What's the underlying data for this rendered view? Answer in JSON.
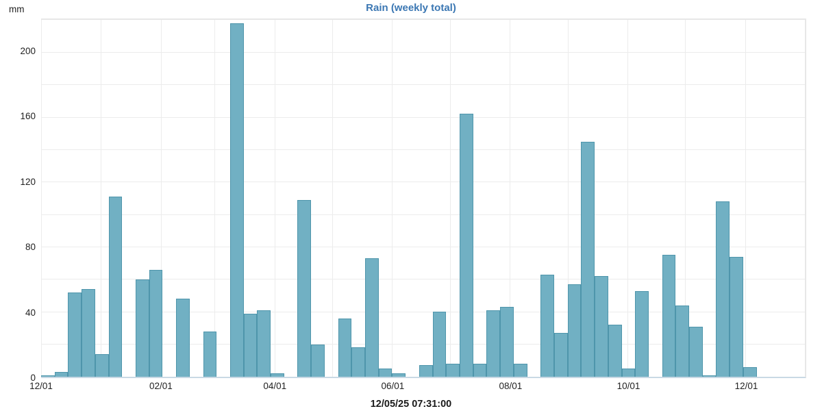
{
  "header": {
    "title": "Rain (weekly total)",
    "unit_label": "mm"
  },
  "footer": {
    "timestamp": "12/05/25 07:31:00"
  },
  "colors": {
    "bar_fill": "#71b0c3",
    "bar_border": "#4e95ab",
    "title_text": "#3b77b3",
    "grid_line": "#ececec",
    "frame_line": "#e7e7e7",
    "axis_baseline": "#c9d9e4",
    "tick_text": "#1f1f1f"
  },
  "chart_data": {
    "type": "bar",
    "title": "Rain (weekly total)",
    "ylabel": "mm",
    "xlabel": "",
    "ylim": [
      0,
      220
    ],
    "y_tick_labels": [
      0,
      40,
      80,
      120,
      160,
      200
    ],
    "y_grid_step": 20,
    "grid": true,
    "legend_position": "none",
    "x_axis_note": "weekly bars over 13 months, ticks every 2 months",
    "x_tick_labels": [
      "12/01",
      "02/01",
      "04/01",
      "06/01",
      "08/01",
      "10/01",
      "12/01"
    ],
    "x_tick_days": [
      0,
      62,
      121,
      182,
      243,
      304,
      365
    ],
    "x_month_grid_days": [
      0,
      31,
      62,
      90,
      121,
      151,
      182,
      212,
      243,
      273,
      304,
      334,
      365
    ],
    "x_total_days": 396,
    "bar_width_days": 7,
    "series_name": "Rain weekly total (mm)",
    "values": [
      1,
      3,
      52,
      54,
      14,
      111,
      0,
      60,
      66,
      0,
      48,
      0,
      28,
      0,
      218,
      39,
      41,
      2,
      0,
      109,
      20,
      0,
      36,
      18,
      73,
      5,
      2,
      0,
      7,
      40,
      8,
      162,
      8,
      41,
      43,
      8,
      0,
      63,
      27,
      57,
      145,
      62,
      32,
      5,
      53,
      0,
      75,
      44,
      31,
      1,
      108,
      74,
      6
    ]
  }
}
